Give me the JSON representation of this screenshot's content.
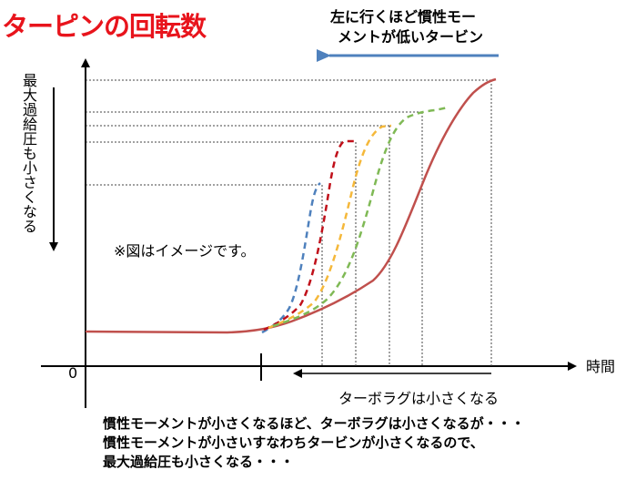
{
  "title": "ターピンの回転数",
  "top_note": {
    "line1": "左に行くほど慣性モー",
    "line2": "メントが低いタービン"
  },
  "y_axis_label": "最大過給圧も小さくなる",
  "x_axis_label": "時間",
  "origin_label": "0",
  "caption": "※図はイメージです。",
  "lag_label": "ターボラグは小さくなる",
  "bottom_text": {
    "line1": "慣性モーメントが小さくなるほど、ターボラグは小さくなるが・・・",
    "line2": "慣性モーメントが小さいすなわちタービンが小さくなるので、",
    "line3": "最大過給圧も小さくなる・・・"
  },
  "colors": {
    "title": "#e8141c",
    "arrow_blue": "#4f81bd",
    "curve_main": "#c0504d",
    "curve_blue": "#4f81bd",
    "curve_darkred": "#c0101a",
    "curve_orange": "#f5b83a",
    "curve_green": "#7fb955"
  }
}
